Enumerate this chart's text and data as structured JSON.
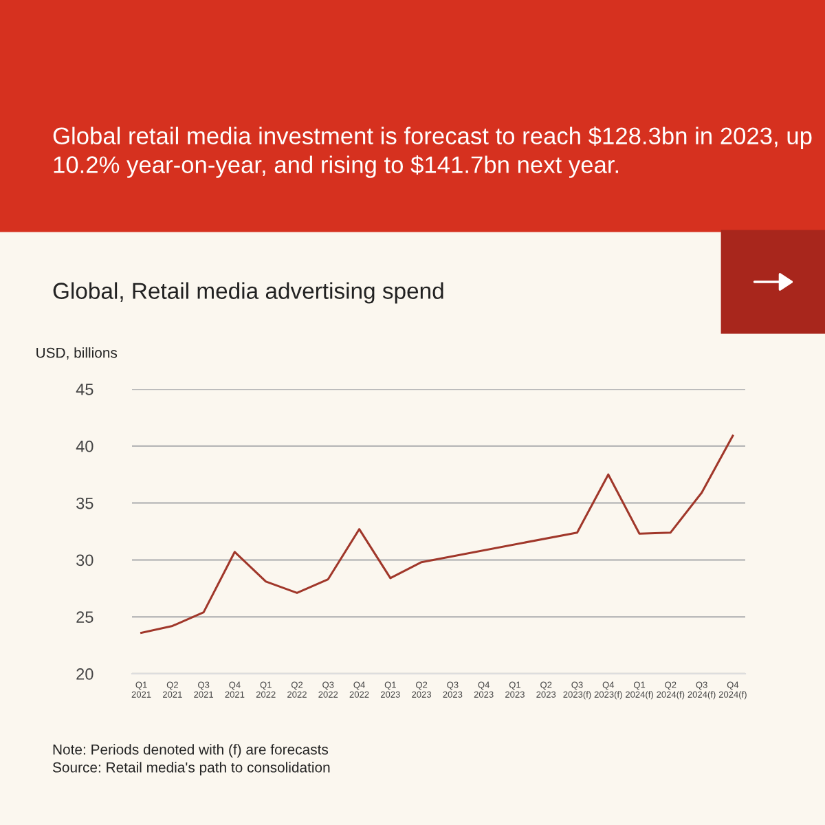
{
  "chart_data": {
    "type": "line",
    "subtitle": "Global retail media investment is forecast to reach $128.3bn in 2023, up 10.2% year-on-year, and rising to $141.7bn next year.",
    "title": "Global, Retail media advertising spend",
    "ylabel": "USD, billions",
    "categories": [
      "Q1\n2021",
      "Q2\n2021",
      "Q3\n2021",
      "Q4\n2021",
      "Q1\n2022",
      "Q2\n2022",
      "Q3\n2022",
      "Q4\n2022",
      "Q1\n2023",
      "Q2\n2023",
      "Q3\n2023",
      "Q4\n2023",
      "Q1\n2023",
      "Q2\n2023",
      "Q3\n2023(f)",
      "Q4\n2023(f)",
      "Q1\n2024(f)",
      "Q2\n2024(f)",
      "Q3\n2024(f)",
      "Q4\n2024(f)"
    ],
    "series": [
      {
        "color": "#a0372a",
        "values": [
          23.6,
          24.2,
          25.4,
          30.7,
          28.1,
          27.1,
          28.3,
          32.7,
          28.4,
          29.8,
          null,
          null,
          null,
          null,
          32.4,
          37.5,
          32.3,
          32.4,
          35.9,
          40.9
        ]
      }
    ],
    "ylim": [
      20,
      45
    ],
    "yticks": [
      20,
      25,
      30,
      35,
      40,
      45
    ],
    "grid": "y",
    "marker": "none",
    "line_style": "solid",
    "annotations": [
      "Note: Periods denoted with (f) are forecasts",
      "Source: Retail media's path to consolidation"
    ]
  }
}
